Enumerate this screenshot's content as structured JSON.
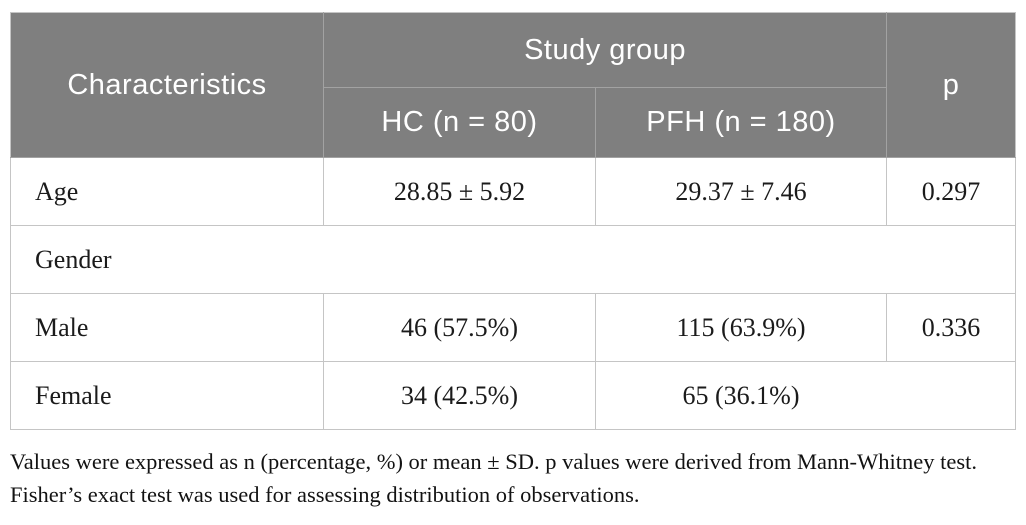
{
  "table": {
    "header": {
      "characteristics": "Characteristics",
      "study_group": "Study group",
      "hc": "HC (n = 80)",
      "pfh": "PFH (n = 180)",
      "p": "p"
    },
    "rows": [
      {
        "label": "Age",
        "hc": "28.85 ± 5.92",
        "pfh": "29.37 ± 7.46",
        "p": "0.297"
      },
      {
        "label": "Gender"
      },
      {
        "label": "Male",
        "hc": "46 (57.5%)",
        "pfh": "115 (63.9%)",
        "p": "0.336"
      },
      {
        "label": "Female",
        "hc": "34 (42.5%)",
        "pfh": "65 (36.1%)",
        "p": ""
      }
    ],
    "footnote": "Values were expressed as n (percentage, %) or mean ± SD. p values were derived from Mann-Whitney test. Fisher’s exact test was used for assessing distribution of observations."
  },
  "colors": {
    "header_bg": "#7f7f7f",
    "header_text": "#ffffff",
    "header_divider": "#a2a2a2",
    "body_border": "#c5c5c5",
    "body_text": "#1b1b1b",
    "page_bg": "#ffffff"
  }
}
